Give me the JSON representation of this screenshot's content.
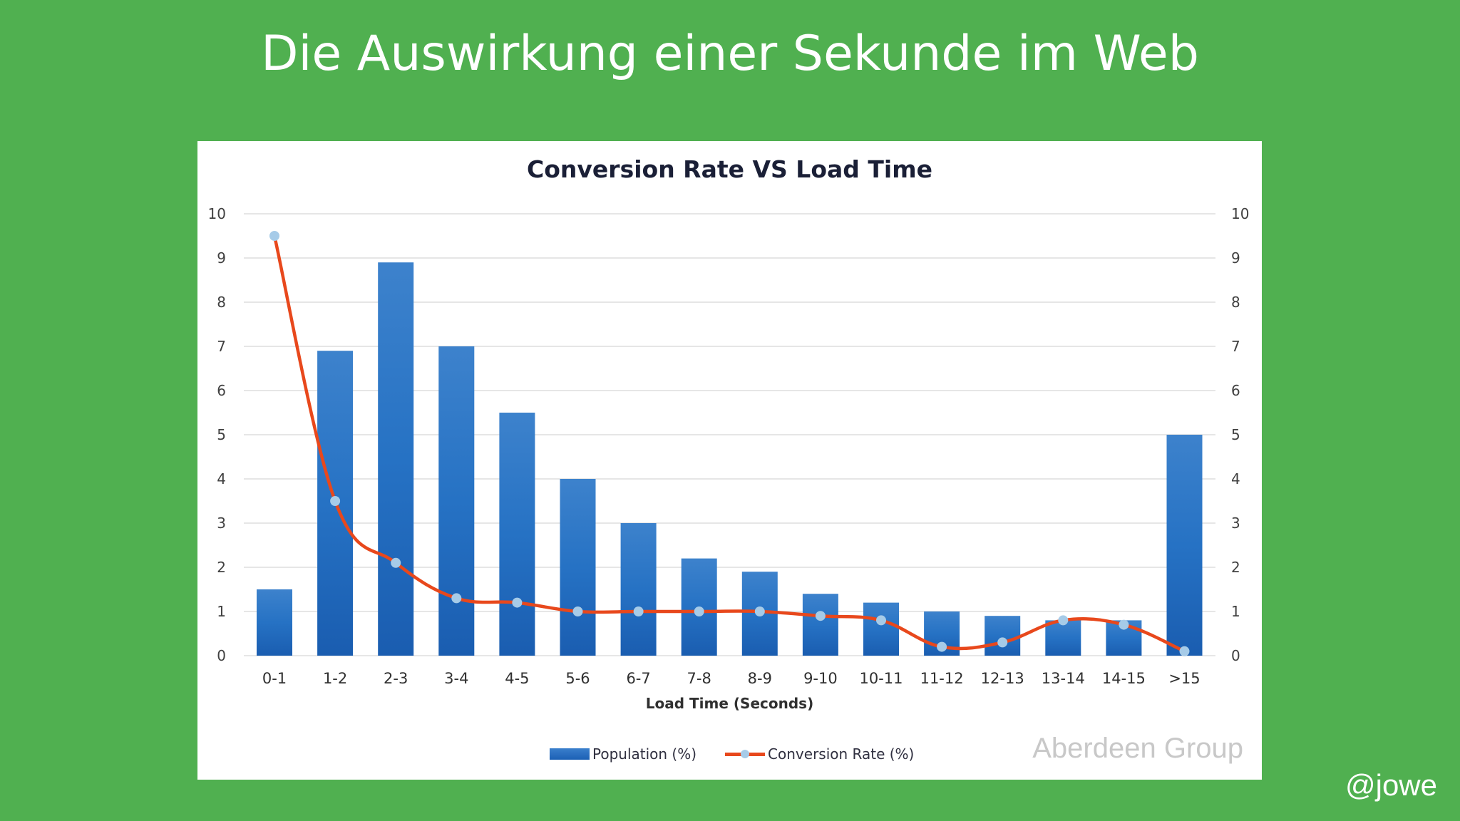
{
  "slide": {
    "title": "Die Auswirkung einer Sekunde im Web",
    "handle": "@jowe",
    "background_color": "#50b050"
  },
  "chart": {
    "title": "Conversion Rate VS Load Time",
    "xlabel": "Load Time (Seconds)",
    "legend": {
      "bar_label": "Population (%)",
      "line_label": "Conversion Rate (%)"
    },
    "watermark": "Aberdeen Group",
    "colors": {
      "bar": "#2870c2",
      "line": "#e8481c",
      "marker": "#a6cbe8",
      "grid": "#e6e6e6"
    }
  },
  "chart_data": {
    "type": "bar",
    "title": "Conversion Rate VS Load Time",
    "xlabel": "Load Time (Seconds)",
    "ylabel": "",
    "ylim": [
      0,
      10
    ],
    "y2lim": [
      0,
      10
    ],
    "yticks": [
      0,
      1,
      2,
      3,
      4,
      5,
      6,
      7,
      8,
      9,
      10
    ],
    "grid": true,
    "legend_position": "bottom",
    "categories": [
      "0-1",
      "1-2",
      "2-3",
      "3-4",
      "4-5",
      "5-6",
      "6-7",
      "7-8",
      "8-9",
      "9-10",
      "10-11",
      "11-12",
      "12-13",
      "13-14",
      "14-15",
      ">15"
    ],
    "series": [
      {
        "name": "Population (%)",
        "type": "bar",
        "axis": "left",
        "values": [
          1.5,
          6.9,
          8.9,
          7.0,
          5.5,
          4.0,
          3.0,
          2.2,
          1.9,
          1.4,
          1.2,
          1.0,
          0.9,
          0.8,
          0.8,
          5.0
        ]
      },
      {
        "name": "Conversion Rate (%)",
        "type": "line",
        "smooth": true,
        "axis": "right",
        "values": [
          9.5,
          3.5,
          2.1,
          1.3,
          1.2,
          1.0,
          1.0,
          1.0,
          1.0,
          0.9,
          0.8,
          0.2,
          0.3,
          0.8,
          0.7,
          0.1
        ]
      }
    ],
    "annotations": [
      "Aberdeen Group"
    ]
  }
}
